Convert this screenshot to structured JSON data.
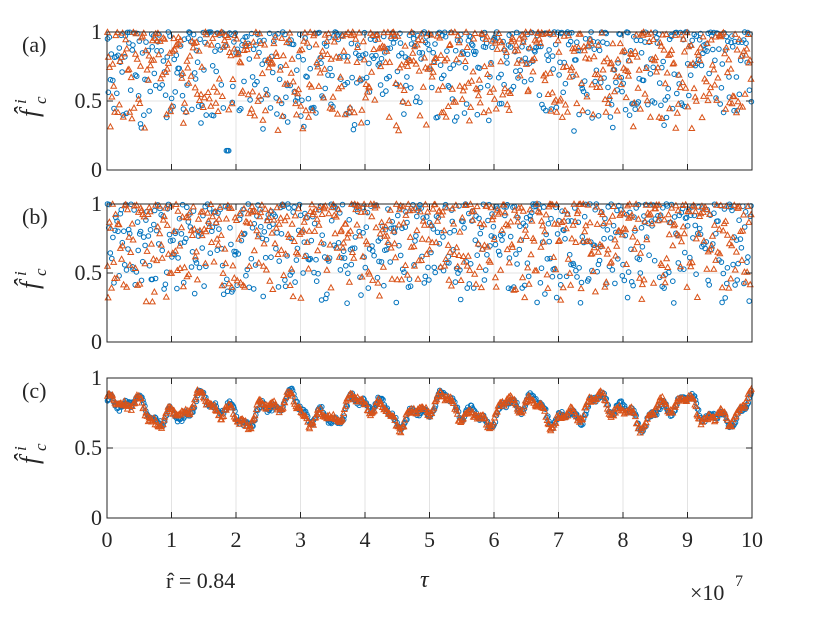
{
  "figure": {
    "x_exponent_label": "×10",
    "x_exponent_power": "7",
    "annotation": "r̂ = 0.84",
    "xlabel": "τ",
    "ylabel": "f̂ᶜⁱ"
  },
  "chart_data": [
    {
      "type": "scatter",
      "panel_label": "(a)",
      "title": "",
      "xlabel": "τ",
      "ylabel": "f̂ᶜⁱ",
      "xlim": [
        0,
        10
      ],
      "ylim": [
        0,
        1
      ],
      "x_scale": "×10^7",
      "yticks": [
        0,
        0.5,
        1
      ],
      "ytick_labels": [
        "0",
        "0.5",
        "1"
      ],
      "xticks": [
        0,
        1,
        2,
        3,
        4,
        5,
        6,
        7,
        8,
        9,
        10
      ],
      "grid": true,
      "marker_colors": {
        "circle": "#0072BD",
        "triangle": "#D95319"
      },
      "series": [
        {
          "marker": "circle",
          "color": "#0072BD",
          "count": 600,
          "value_range": [
            0.13,
            1.0
          ],
          "mean": 0.75
        },
        {
          "marker": "triangle",
          "color": "#D95319",
          "count": 600,
          "value_range": [
            0.28,
            1.0
          ],
          "mean": 0.76
        }
      ]
    },
    {
      "type": "scatter",
      "panel_label": "(b)",
      "title": "",
      "xlabel": "τ",
      "ylabel": "f̂ᶜⁱ",
      "xlim": [
        0,
        10
      ],
      "ylim": [
        0,
        1
      ],
      "x_scale": "×10^7",
      "yticks": [
        0,
        0.5,
        1
      ],
      "ytick_labels": [
        "0",
        "0.5",
        "1"
      ],
      "xticks": [
        0,
        1,
        2,
        3,
        4,
        5,
        6,
        7,
        8,
        9,
        10
      ],
      "grid": true,
      "marker_colors": {
        "circle": "#0072BD",
        "triangle": "#D95319"
      },
      "series": [
        {
          "marker": "circle",
          "color": "#0072BD",
          "count": 600,
          "value_range": [
            0.36,
            1.0
          ],
          "mean": 0.76
        },
        {
          "marker": "triangle",
          "color": "#D95319",
          "count": 600,
          "value_range": [
            0.35,
            1.0
          ],
          "mean": 0.77
        }
      ]
    },
    {
      "type": "scatter",
      "panel_label": "(c)",
      "title": "",
      "xlabel": "τ",
      "ylabel": "f̂ᶜⁱ",
      "xlim": [
        0,
        10
      ],
      "ylim": [
        0,
        1
      ],
      "x_scale": "×10^7",
      "yticks": [
        0,
        0.5,
        1
      ],
      "ytick_labels": [
        "0",
        "0.5",
        "1"
      ],
      "xticks": [
        0,
        1,
        2,
        3,
        4,
        5,
        6,
        7,
        8,
        9,
        10
      ],
      "xtick_labels": [
        "0",
        "1",
        "2",
        "3",
        "4",
        "5",
        "6",
        "7",
        "8",
        "9",
        "10"
      ],
      "grid": true,
      "marker_colors": {
        "circle": "#0072BD",
        "triangle": "#D95319"
      },
      "series": [
        {
          "marker": "circle",
          "color": "#0072BD",
          "count": 650,
          "value_range": [
            0.56,
            0.95
          ],
          "mean": 0.76
        },
        {
          "marker": "triangle",
          "color": "#D95319",
          "count": 650,
          "value_range": [
            0.6,
            0.95
          ],
          "mean": 0.77
        }
      ]
    }
  ]
}
